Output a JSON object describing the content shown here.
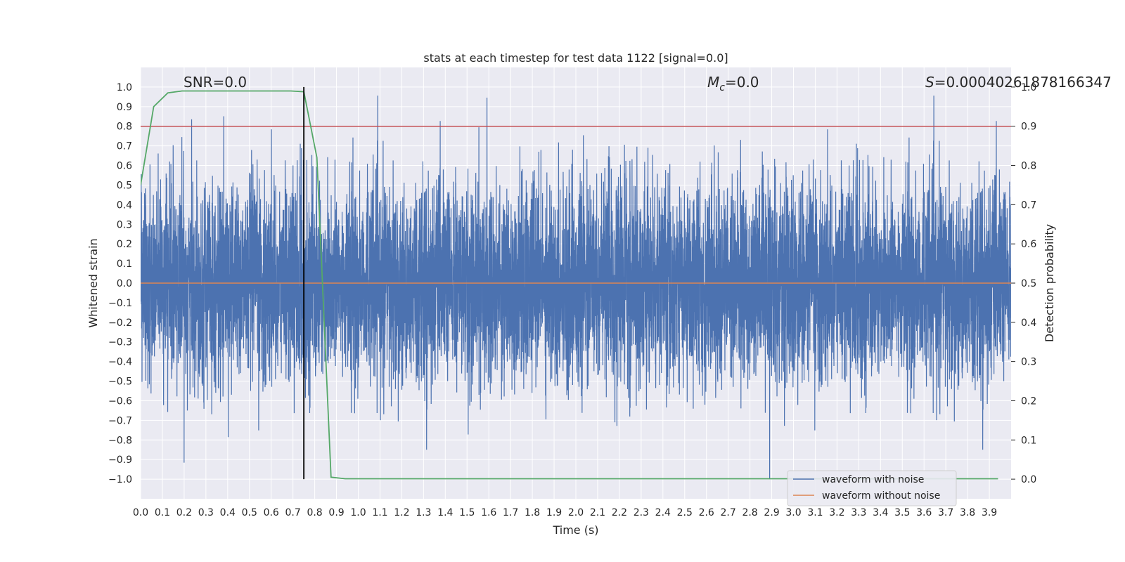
{
  "chart_data": {
    "type": "line",
    "title": "stats at each timestep for test data 1122 [signal=0.0]",
    "xlabel": "Time (s)",
    "ylabel": "Whitened strain",
    "y2label": "Detection probability",
    "xlim": [
      0.0,
      4.0
    ],
    "ylim": [
      -1.1,
      1.1
    ],
    "y2lim": [
      -0.05,
      1.05
    ],
    "x_ticks": [
      "0.0",
      "0.1",
      "0.2",
      "0.3",
      "0.4",
      "0.5",
      "0.6",
      "0.7",
      "0.8",
      "0.9",
      "1.0",
      "1.1",
      "1.2",
      "1.3",
      "1.4",
      "1.5",
      "1.6",
      "1.7",
      "1.8",
      "1.9",
      "2.0",
      "2.1",
      "2.2",
      "2.3",
      "2.4",
      "2.5",
      "2.6",
      "2.7",
      "2.8",
      "2.9",
      "3.0",
      "3.1",
      "3.2",
      "3.3",
      "3.4",
      "3.5",
      "3.6",
      "3.7",
      "3.8",
      "3.9"
    ],
    "y_ticks": [
      "1.0",
      "0.9",
      "0.8",
      "0.7",
      "0.6",
      "0.5",
      "0.4",
      "0.3",
      "0.2",
      "0.1",
      "0.0",
      "−0.1",
      "−0.2",
      "−0.3",
      "−0.4",
      "−0.5",
      "−0.6",
      "−0.7",
      "−0.8",
      "−0.9",
      "−1.0"
    ],
    "y2_ticks": [
      "1.0",
      "0.9",
      "0.8",
      "0.7",
      "0.6",
      "0.5",
      "0.4",
      "0.3",
      "0.2",
      "0.1",
      "0.0"
    ],
    "annotations": {
      "snr": "SNR=0.0",
      "mc_symbol": "M",
      "mc_sub": "c",
      "mc_value": "=0.0",
      "s_symbol": "S",
      "s_value": "=0.00040261878166347"
    },
    "legend": {
      "location": "lower right",
      "entries": [
        {
          "label": "waveform with noise",
          "color": "#4c72b0"
        },
        {
          "label": "waveform without noise",
          "color": "#dd8452"
        }
      ]
    },
    "series": [
      {
        "name": "waveform with noise",
        "axis": "left",
        "color": "#4c72b0",
        "kind": "noise",
        "n_samples": 8192,
        "amplitude_rms": 0.25,
        "max_abs": 1.0
      },
      {
        "name": "waveform without noise",
        "axis": "left",
        "color": "#dd8452",
        "kind": "constant",
        "value": 0.0
      }
    ],
    "detection_probability": {
      "axis": "right",
      "color": "#55a868",
      "x": [
        0.0,
        0.06,
        0.125,
        0.19,
        0.25,
        0.31,
        0.375,
        0.44,
        0.5,
        0.56,
        0.625,
        0.69,
        0.75,
        0.81,
        0.875,
        0.94,
        1.0,
        1.5,
        2.0,
        2.5,
        3.0,
        3.5,
        3.94
      ],
      "y": [
        0.75,
        0.95,
        0.985,
        0.99,
        0.99,
        0.99,
        0.99,
        0.99,
        0.99,
        0.99,
        0.99,
        0.99,
        0.988,
        0.82,
        0.005,
        0.001,
        0.001,
        0.001,
        0.001,
        0.001,
        0.001,
        0.001,
        0.001
      ]
    },
    "threshold": {
      "axis": "right",
      "value": 0.9,
      "color": "#c44e52"
    },
    "detection_time": {
      "x": 0.75,
      "y_from": -1.0,
      "y_to": 1.0,
      "color": "#000000"
    },
    "grid": true,
    "background": "#eaeaf2"
  }
}
